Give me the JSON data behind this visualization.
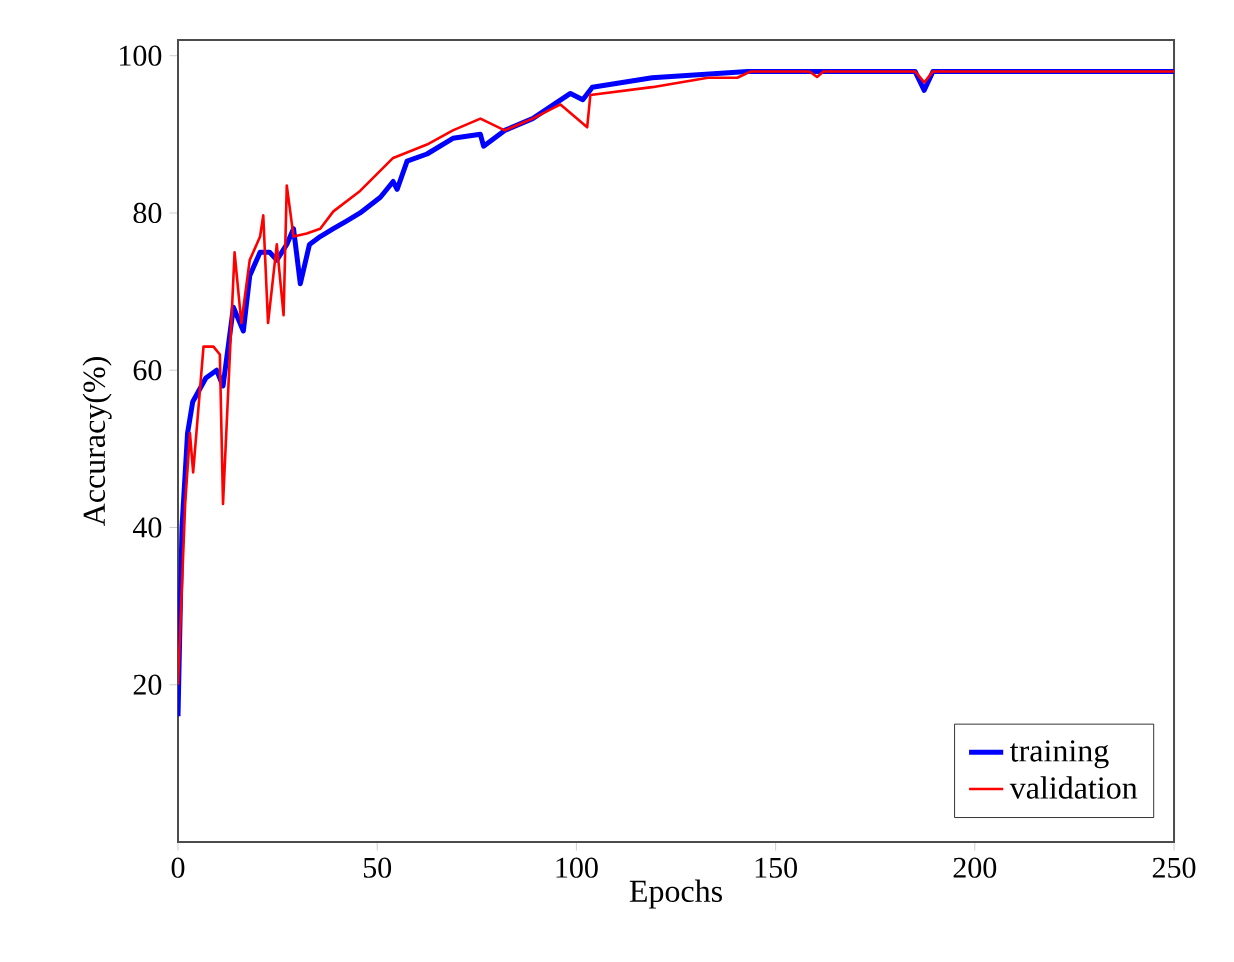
{
  "chart_data": {
    "type": "line",
    "xlabel": "Epochs",
    "ylabel": "Accuracy(%)",
    "xlim": [
      0,
      250
    ],
    "ylim": [
      0,
      102
    ],
    "xticks": [
      0,
      50,
      100,
      150,
      200,
      250
    ],
    "yticks": [
      20,
      40,
      60,
      80,
      100
    ],
    "legend": "bottom right",
    "marker": "none",
    "grid": false,
    "series": [
      {
        "name": "training",
        "color": "#0000ff",
        "x": [
          0,
          1,
          2.4,
          3.7,
          7,
          9.7,
          11.3,
          13.9,
          16.4,
          18,
          20.6,
          23,
          24.8,
          27.3,
          29,
          30.7,
          33,
          35.7,
          39,
          42.4,
          45.7,
          50.8,
          54,
          55,
          57.5,
          62.5,
          69,
          75.9,
          76.7,
          82,
          89,
          98.5,
          101.6,
          104,
          119,
          143,
          185,
          187.3,
          189.5,
          250
        ],
        "values": [
          16,
          40,
          52,
          56,
          59,
          60,
          58,
          68,
          65,
          72,
          75,
          75,
          74,
          76,
          78,
          71,
          76,
          77,
          78,
          79,
          80,
          82,
          84,
          83,
          86.6,
          87.5,
          89.5,
          90,
          88.5,
          90.5,
          92,
          95.2,
          94.4,
          96,
          97.2,
          98,
          98,
          95.6,
          98,
          98
        ]
      },
      {
        "name": "validation",
        "color": "#ff0000",
        "x": [
          0,
          1.8,
          3,
          3.8,
          6.4,
          8.9,
          10.5,
          11.3,
          14.2,
          15.9,
          18,
          20.6,
          21.4,
          22.6,
          24.8,
          26.5,
          27.3,
          29,
          32.3,
          35.7,
          39,
          45.7,
          54,
          62.5,
          69,
          75.9,
          82,
          89,
          96,
          102.7,
          103.5,
          119,
          133,
          140.4,
          143.8,
          158.5,
          160.4,
          162,
          185,
          187.3,
          189.5,
          250
        ],
        "values": [
          20,
          43,
          52,
          47,
          63,
          63,
          62,
          43,
          75,
          66,
          74,
          77,
          79.7,
          66,
          76,
          67,
          83.5,
          77,
          77.4,
          78,
          80.2,
          82.8,
          87,
          88.7,
          90.5,
          92,
          90.5,
          92,
          93.8,
          90.9,
          95,
          96,
          97.2,
          97.2,
          98,
          98,
          97.3,
          98,
          98,
          96.6,
          98,
          98
        ]
      }
    ]
  }
}
